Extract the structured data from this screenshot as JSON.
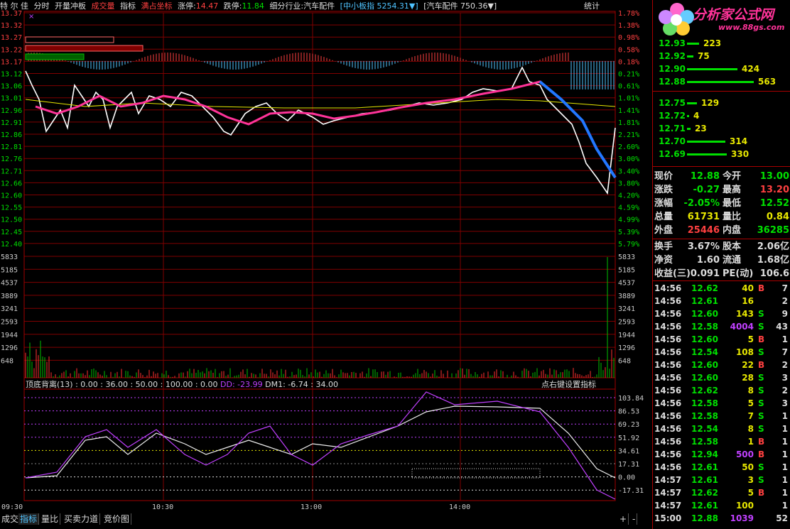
{
  "topbar": {
    "stock_name": "特 尔 佳",
    "mode_labels": [
      "分时",
      "开量冲板",
      "成交量",
      "指标",
      "满占坐标"
    ],
    "limit_up_label": "涨停:",
    "limit_up_value": "14.47",
    "limit_down_label": "跌停:",
    "limit_down_value": "11.84",
    "industry_label": "细分行业:",
    "industry_value": "汽车配件",
    "index1": "[中小板指 5254.31▼]",
    "index2": "[汽车配件 750.36▼]",
    "stats_label": "统计",
    "close_icon": "×"
  },
  "logo": {
    "title": "分析家公式网",
    "url": "www.88gs.com"
  },
  "price_axis_left": [
    "13.37",
    "13.32",
    "13.27",
    "13.22",
    "13.17",
    "13.12",
    "13.06",
    "13.01",
    "12.96",
    "12.91",
    "12.86",
    "12.81",
    "12.76",
    "12.71",
    "12.66",
    "12.60",
    "12.55",
    "12.50",
    "12.45",
    "12.40"
  ],
  "price_axis_right": [
    "1.78%",
    "1.38%",
    "0.98%",
    "0.58%",
    "0.18%",
    "0.21%",
    "0.61%",
    "1.01%",
    "1.41%",
    "1.81%",
    "2.21%",
    "2.60%",
    "3.00%",
    "3.40%",
    "3.80%",
    "4.20%",
    "4.59%",
    "4.99%",
    "5.39%",
    "5.79%"
  ],
  "volume_axis": [
    "5833",
    "5185",
    "4537",
    "3889",
    "3241",
    "2593",
    "1944",
    "1296",
    "648"
  ],
  "indicator": {
    "header": "顶底背离(13) : 0.00 : 36.00 : 50.00 : 100.00 : 0.00",
    "dd": "DD: -23.99",
    "dm1": "DM1: -6.74 : 34.00",
    "settings": "点右键设置指标",
    "axis": [
      "103.84",
      "86.53",
      "69.23",
      "51.92",
      "34.61",
      "17.31",
      "0.00",
      "-17.31"
    ]
  },
  "time_axis": [
    "09:30",
    "10:30",
    "13:00",
    "14:00"
  ],
  "bottom_tabs": [
    "成交量",
    "指标",
    "量比",
    "买卖力道",
    "竞价图"
  ],
  "bottom_controls": [
    "+",
    "-"
  ],
  "order_book": [
    {
      "price": "12.93",
      "vol": "223",
      "bar": 0.1
    },
    {
      "price": "12.92",
      "vol": "75",
      "bar": 0.05
    },
    {
      "price": "12.90",
      "vol": "424",
      "bar": 0.42
    },
    {
      "price": "12.88",
      "vol": "563",
      "bar": 0.55
    },
    {
      "price": "12.75",
      "vol": "129",
      "bar": 0.08
    },
    {
      "price": "12.72",
      "vol": "4",
      "bar": 0.02
    },
    {
      "price": "12.71",
      "vol": "23",
      "bar": 0.03
    },
    {
      "price": "12.70",
      "vol": "314",
      "bar": 0.32
    },
    {
      "price": "12.69",
      "vol": "330",
      "bar": 0.33
    }
  ],
  "quote": [
    {
      "l1": "现价",
      "v1": "12.88",
      "c1": "#00e000",
      "l2": "今开",
      "v2": "13.00",
      "c2": "#00e000"
    },
    {
      "l1": "涨跌",
      "v1": "-0.27",
      "c1": "#00e000",
      "l2": "最高",
      "v2": "13.20",
      "c2": "#ff4040"
    },
    {
      "l1": "涨幅",
      "v1": "-2.05%",
      "c1": "#00e000",
      "l2": "最低",
      "v2": "12.52",
      "c2": "#00e000"
    },
    {
      "l1": "总量",
      "v1": "61731",
      "c1": "#e8e800",
      "l2": "量比",
      "v2": "0.84",
      "c2": "#e8e800"
    },
    {
      "l1": "外盘",
      "v1": "25446",
      "c1": "#ff4040",
      "l2": "内盘",
      "v2": "36285",
      "c2": "#00e000"
    },
    {
      "l1": "换手",
      "v1": "3.67%",
      "c1": "#ddd",
      "l2": "股本",
      "v2": "2.06亿",
      "c2": "#ddd"
    },
    {
      "l1": "净资",
      "v1": "1.60",
      "c1": "#ddd",
      "l2": "流通",
      "v2": "1.68亿",
      "c2": "#ddd"
    },
    {
      "l1": "收益(三)",
      "v1": "0.091",
      "c1": "#ddd",
      "l2": "PE(动)",
      "v2": "106.6",
      "c2": "#ddd"
    }
  ],
  "ticks": [
    {
      "t": "14:56",
      "p": "12.62",
      "v": "40",
      "s": "B",
      "n": "7",
      "pc": "#00e000",
      "vc": "#e8e800"
    },
    {
      "t": "14:56",
      "p": "12.61",
      "v": "16",
      "s": "",
      "n": "2",
      "pc": "#00e000",
      "vc": "#e8e800"
    },
    {
      "t": "14:56",
      "p": "12.60",
      "v": "143",
      "s": "S",
      "n": "9",
      "pc": "#00e000",
      "vc": "#e8e800"
    },
    {
      "t": "14:56",
      "p": "12.58",
      "v": "4004",
      "s": "S",
      "n": "43",
      "pc": "#00e000",
      "vc": "#c040ff"
    },
    {
      "t": "14:56",
      "p": "12.60",
      "v": "5",
      "s": "B",
      "n": "1",
      "pc": "#00e000",
      "vc": "#e8e800"
    },
    {
      "t": "14:56",
      "p": "12.54",
      "v": "108",
      "s": "S",
      "n": "7",
      "pc": "#00e000",
      "vc": "#e8e800"
    },
    {
      "t": "14:56",
      "p": "12.60",
      "v": "22",
      "s": "B",
      "n": "2",
      "pc": "#00e000",
      "vc": "#e8e800"
    },
    {
      "t": "14:56",
      "p": "12.60",
      "v": "28",
      "s": "S",
      "n": "3",
      "pc": "#00e000",
      "vc": "#e8e800"
    },
    {
      "t": "14:56",
      "p": "12.62",
      "v": "8",
      "s": "S",
      "n": "2",
      "pc": "#00e000",
      "vc": "#e8e800"
    },
    {
      "t": "14:56",
      "p": "12.58",
      "v": "5",
      "s": "S",
      "n": "3",
      "pc": "#00e000",
      "vc": "#e8e800"
    },
    {
      "t": "14:56",
      "p": "12.58",
      "v": "7",
      "s": "S",
      "n": "1",
      "pc": "#00e000",
      "vc": "#e8e800"
    },
    {
      "t": "14:56",
      "p": "12.54",
      "v": "8",
      "s": "S",
      "n": "1",
      "pc": "#00e000",
      "vc": "#e8e800"
    },
    {
      "t": "14:56",
      "p": "12.58",
      "v": "1",
      "s": "B",
      "n": "1",
      "pc": "#00e000",
      "vc": "#e8e800"
    },
    {
      "t": "14:56",
      "p": "12.94",
      "v": "500",
      "s": "B",
      "n": "1",
      "pc": "#00e000",
      "vc": "#c040ff"
    },
    {
      "t": "14:56",
      "p": "12.61",
      "v": "50",
      "s": "S",
      "n": "1",
      "pc": "#00e000",
      "vc": "#e8e800"
    },
    {
      "t": "14:57",
      "p": "12.61",
      "v": "3",
      "s": "S",
      "n": "1",
      "pc": "#00e000",
      "vc": "#e8e800"
    },
    {
      "t": "14:57",
      "p": "12.62",
      "v": "5",
      "s": "B",
      "n": "1",
      "pc": "#00e000",
      "vc": "#e8e800"
    },
    {
      "t": "14:57",
      "p": "12.61",
      "v": "100",
      "s": "",
      "n": "1",
      "pc": "#00e000",
      "vc": "#e8e800"
    },
    {
      "t": "15:00",
      "p": "12.88",
      "v": "1039",
      "s": "",
      "n": "52",
      "pc": "#00e000",
      "vc": "#c040ff"
    }
  ]
}
